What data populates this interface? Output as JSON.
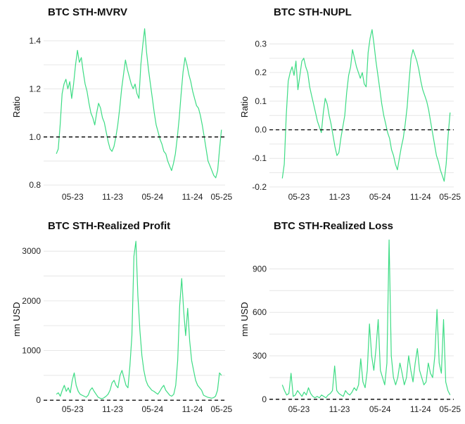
{
  "colors": {
    "series": "#3ddc84",
    "reference": "#111111",
    "grid": "#e6e6e6"
  },
  "chart_data": [
    {
      "type": "line",
      "title": "BTC STH-MVRV",
      "ylabel": "Ratio",
      "xlabel": "",
      "x_ticks": [
        "05-23",
        "11-23",
        "05-24",
        "11-24",
        "05-25"
      ],
      "y_ticks": [
        "0.8",
        "1.0",
        "1.2",
        "1.4"
      ],
      "ylim": [
        0.78,
        1.47
      ],
      "reference_line": 1.0,
      "x_range": [
        "2023-01",
        "2025-05"
      ],
      "series": [
        {
          "values": [
            0.93,
            0.95,
            1.05,
            1.18,
            1.22,
            1.24,
            1.2,
            1.23,
            1.16,
            1.22,
            1.3,
            1.36,
            1.31,
            1.33,
            1.27,
            1.22,
            1.19,
            1.14,
            1.1,
            1.08,
            1.05,
            1.1,
            1.14,
            1.12,
            1.08,
            1.06,
            1.02,
            0.98,
            0.95,
            0.94,
            0.96,
            1.0,
            1.05,
            1.12,
            1.2,
            1.26,
            1.32,
            1.28,
            1.25,
            1.22,
            1.2,
            1.22,
            1.18,
            1.16,
            1.3,
            1.38,
            1.45,
            1.35,
            1.28,
            1.22,
            1.16,
            1.1,
            1.05,
            1.02,
            0.99,
            0.97,
            0.94,
            0.93,
            0.9,
            0.88,
            0.86,
            0.89,
            0.93,
            1.0,
            1.08,
            1.18,
            1.27,
            1.33,
            1.3,
            1.26,
            1.23,
            1.19,
            1.16,
            1.13,
            1.12,
            1.09,
            1.05,
            1.0,
            0.95,
            0.9,
            0.88,
            0.86,
            0.84,
            0.83,
            0.86,
            0.95,
            1.03
          ]
        }
      ]
    },
    {
      "type": "line",
      "title": "BTC STH-NUPL",
      "ylabel": "Ratio",
      "xlabel": "",
      "x_ticks": [
        "05-23",
        "11-23",
        "05-24",
        "11-24",
        "05-25"
      ],
      "y_ticks": [
        "-0.2",
        "-0.1",
        "0.0",
        "0.1",
        "0.2",
        "0.3"
      ],
      "ylim": [
        -0.21,
        0.37
      ],
      "reference_line": 0.0,
      "x_range": [
        "2023-01",
        "2025-05"
      ],
      "series": [
        {
          "values": [
            -0.17,
            -0.12,
            0.05,
            0.17,
            0.2,
            0.22,
            0.19,
            0.24,
            0.14,
            0.19,
            0.24,
            0.25,
            0.22,
            0.2,
            0.15,
            0.12,
            0.09,
            0.06,
            0.03,
            0.01,
            -0.01,
            0.06,
            0.11,
            0.09,
            0.05,
            0.02,
            -0.02,
            -0.06,
            -0.09,
            -0.08,
            -0.03,
            0.01,
            0.05,
            0.13,
            0.19,
            0.22,
            0.28,
            0.25,
            0.22,
            0.2,
            0.18,
            0.2,
            0.16,
            0.15,
            0.27,
            0.32,
            0.35,
            0.3,
            0.24,
            0.19,
            0.14,
            0.09,
            0.05,
            0.02,
            -0.01,
            -0.03,
            -0.07,
            -0.09,
            -0.12,
            -0.14,
            -0.1,
            -0.06,
            -0.03,
            0.02,
            0.08,
            0.17,
            0.25,
            0.28,
            0.26,
            0.24,
            0.21,
            0.17,
            0.14,
            0.12,
            0.1,
            0.07,
            0.03,
            -0.01,
            -0.05,
            -0.09,
            -0.11,
            -0.14,
            -0.16,
            -0.18,
            -0.12,
            -0.02,
            0.06
          ]
        }
      ]
    },
    {
      "type": "line",
      "title": "BTC STH-Realized Profit",
      "ylabel": "mn USD",
      "xlabel": "",
      "x_ticks": [
        "05-23",
        "11-23",
        "05-24",
        "11-24",
        "05-25"
      ],
      "y_ticks": [
        "0",
        "1000",
        "2000",
        "3000"
      ],
      "ylim": [
        -40,
        3300
      ],
      "reference_line": 0,
      "x_range": [
        "2023-01",
        "2025-05"
      ],
      "series": [
        {
          "values": [
            120,
            150,
            80,
            200,
            300,
            180,
            250,
            150,
            400,
            550,
            300,
            180,
            120,
            100,
            80,
            60,
            100,
            200,
            250,
            180,
            120,
            60,
            40,
            30,
            50,
            80,
            120,
            200,
            350,
            400,
            300,
            250,
            500,
            600,
            450,
            300,
            250,
            700,
            1300,
            2900,
            3200,
            2100,
            1400,
            900,
            600,
            400,
            300,
            250,
            200,
            180,
            150,
            120,
            180,
            250,
            300,
            200,
            150,
            100,
            80,
            120,
            300,
            800,
            1900,
            2450,
            1800,
            1300,
            1850,
            1200,
            800,
            600,
            400,
            300,
            250,
            200,
            100,
            80,
            60,
            50,
            40,
            50,
            80,
            200,
            550,
            500
          ]
        }
      ]
    },
    {
      "type": "line",
      "title": "BTC STH-Realized Loss",
      "ylabel": "mn USD",
      "xlabel": "",
      "x_ticks": [
        "05-23",
        "11-23",
        "05-24",
        "11-24",
        "05-25"
      ],
      "y_ticks": [
        "0",
        "300",
        "600",
        "900"
      ],
      "ylim": [
        -20,
        1125
      ],
      "reference_line": 0,
      "x_range": [
        "2023-01",
        "2025-05"
      ],
      "series": [
        {
          "values": [
            100,
            60,
            30,
            40,
            180,
            20,
            30,
            60,
            40,
            20,
            50,
            30,
            80,
            40,
            20,
            10,
            20,
            10,
            30,
            20,
            10,
            30,
            40,
            60,
            230,
            60,
            40,
            30,
            20,
            60,
            40,
            30,
            50,
            80,
            60,
            100,
            280,
            120,
            80,
            200,
            520,
            300,
            200,
            350,
            550,
            200,
            150,
            100,
            250,
            1100,
            300,
            150,
            100,
            150,
            250,
            180,
            100,
            150,
            300,
            200,
            120,
            250,
            350,
            200,
            150,
            100,
            120,
            250,
            180,
            150,
            300,
            620,
            250,
            180,
            550,
            120,
            60,
            30
          ]
        }
      ]
    }
  ]
}
